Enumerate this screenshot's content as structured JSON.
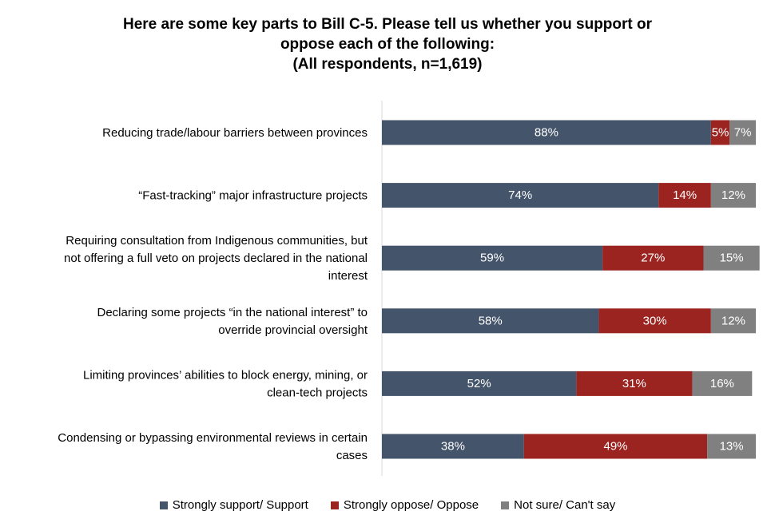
{
  "chart_data": {
    "type": "bar",
    "orientation": "horizontal",
    "stacked": true,
    "title_lines": [
      "Here are some key parts to Bill C-5. Please tell us whether you support or",
      "oppose each of the following:",
      "(All respondents, n=1,619)"
    ],
    "categories": [
      [
        "Reducing trade/labour barriers between provinces"
      ],
      [
        "“Fast-tracking” major infrastructure projects"
      ],
      [
        "Requiring consultation from Indigenous communities, but",
        "not offering a full veto on projects declared in the national",
        "interest"
      ],
      [
        "Declaring some projects “in the national interest” to",
        "override provincial oversight"
      ],
      [
        "Limiting provinces’ abilities to block energy, mining, or",
        "clean-tech projects"
      ],
      [
        "Condensing or bypassing environmental reviews in certain",
        "cases"
      ]
    ],
    "series": [
      {
        "name": "Strongly support/ Support",
        "color": "#44546a",
        "values": [
          88,
          74,
          59,
          58,
          52,
          38
        ]
      },
      {
        "name": "Strongly oppose/ Oppose",
        "color": "#9b2421",
        "values": [
          5,
          14,
          27,
          30,
          31,
          49
        ]
      },
      {
        "name": "Not sure/ Can't say",
        "color": "#808080",
        "values": [
          7,
          12,
          15,
          12,
          16,
          13
        ]
      }
    ],
    "value_suffix": "%",
    "xlim": [
      0,
      100
    ],
    "legend_position": "bottom",
    "grid": false
  }
}
